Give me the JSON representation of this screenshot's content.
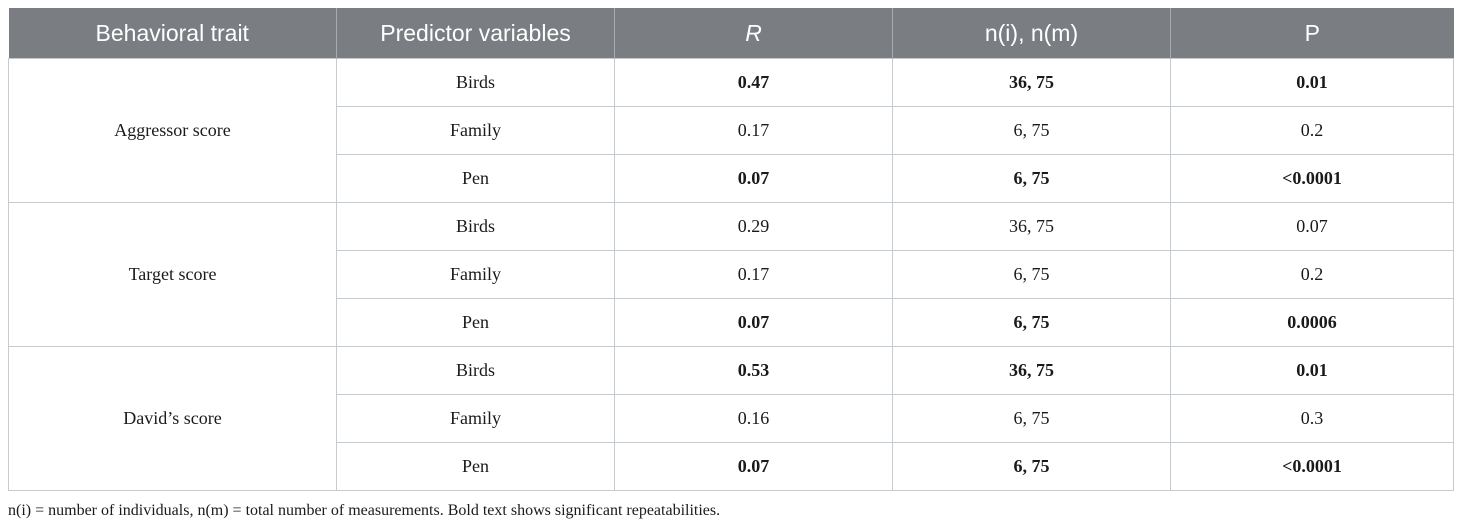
{
  "headers": [
    "Behavioral trait",
    "Predictor variables",
    "R",
    "n(i), n(m)",
    "P"
  ],
  "groups": [
    {
      "trait": "Aggressor score",
      "rows": [
        {
          "predictor": "Birds",
          "r": "0.47",
          "n": "36, 75",
          "p": "0.01",
          "bold": true
        },
        {
          "predictor": "Family",
          "r": "0.17",
          "n": "6, 75",
          "p": "0.2",
          "bold": false
        },
        {
          "predictor": "Pen",
          "r": "0.07",
          "n": "6, 75",
          "p": "<0.0001",
          "bold": true
        }
      ]
    },
    {
      "trait": "Target score",
      "rows": [
        {
          "predictor": "Birds",
          "r": "0.29",
          "n": "36, 75",
          "p": "0.07",
          "bold": false
        },
        {
          "predictor": "Family",
          "r": "0.17",
          "n": "6, 75",
          "p": "0.2",
          "bold": false
        },
        {
          "predictor": "Pen",
          "r": "0.07",
          "n": "6, 75",
          "p": "0.0006",
          "bold": true
        }
      ]
    },
    {
      "trait": "David’s score",
      "rows": [
        {
          "predictor": "Birds",
          "r": "0.53",
          "n": "36, 75",
          "p": "0.01",
          "bold": true
        },
        {
          "predictor": "Family",
          "r": "0.16",
          "n": "6, 75",
          "p": "0.3",
          "bold": false
        },
        {
          "predictor": "Pen",
          "r": "0.07",
          "n": "6, 75",
          "p": "<0.0001",
          "bold": true
        }
      ]
    }
  ],
  "caption": "n(i) = number of individuals, n(m) = total number of measurements. Bold text shows significant repeatabilities.",
  "colors": {
    "header_bg": "#7a7e82",
    "header_text": "#ffffff",
    "grid_line": "#c8cbce"
  }
}
